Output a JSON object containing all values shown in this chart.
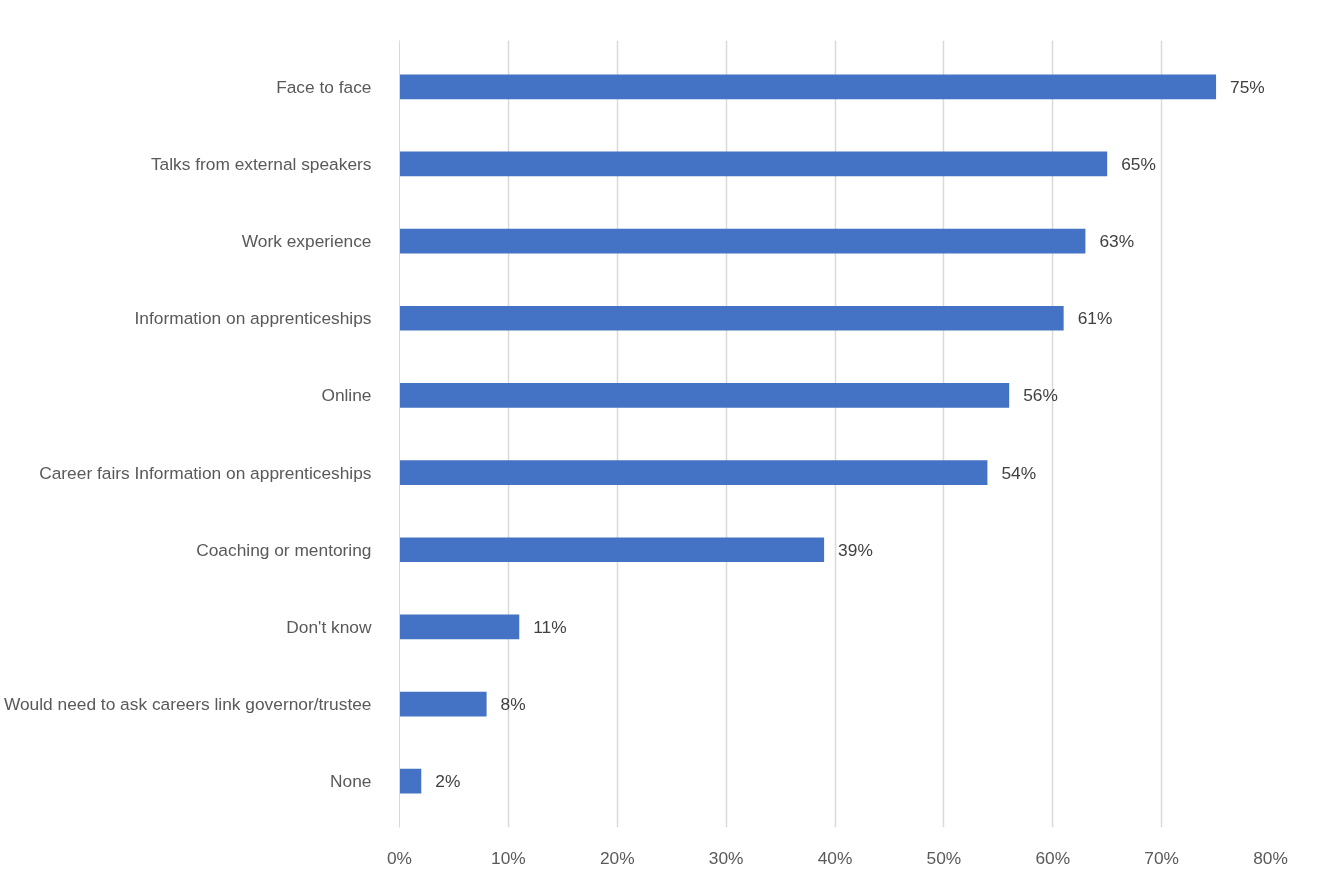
{
  "chart_data": {
    "type": "bar",
    "orientation": "horizontal",
    "categories": [
      "Face to face",
      "Talks from external speakers",
      "Work experience",
      "Information on apprenticeships",
      "Online",
      "Career fairs Information on apprenticeships",
      "Coaching or mentoring",
      "Don't know",
      "Would need to ask careers link governor/trustee",
      "None"
    ],
    "values": [
      75,
      65,
      63,
      61,
      56,
      54,
      39,
      11,
      8,
      2
    ],
    "value_labels": [
      "75%",
      "65%",
      "63%",
      "61%",
      "56%",
      "54%",
      "39%",
      "11%",
      "8%",
      "2%"
    ],
    "color": "#4472c4",
    "xlim": [
      0,
      80
    ],
    "xticks": [
      {
        "value": 0,
        "label": "0%"
      },
      {
        "value": 10,
        "label": "10%"
      },
      {
        "value": 20,
        "label": "20%"
      },
      {
        "value": 30,
        "label": "30%"
      },
      {
        "value": 40,
        "label": "40%"
      },
      {
        "value": 50,
        "label": "50%"
      },
      {
        "value": 60,
        "label": "60%"
      },
      {
        "value": 70,
        "label": "70%"
      },
      {
        "value": 80,
        "label": "80%"
      }
    ],
    "grid": "x"
  }
}
